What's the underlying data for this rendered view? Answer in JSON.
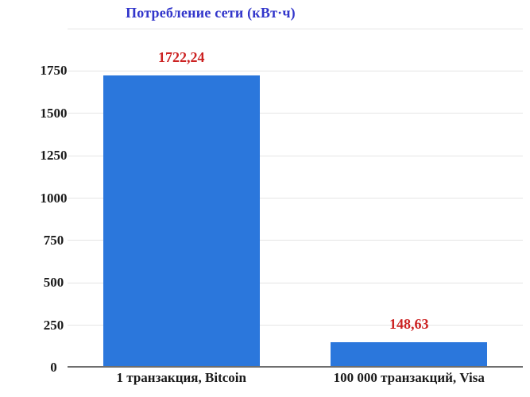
{
  "chart_data": {
    "type": "bar",
    "title": "Потребление сети (кВт·ч)",
    "categories": [
      "1 транзакция, Bitcoin",
      "100 000 транзакций, Visa"
    ],
    "values": [
      1722.24,
      148.63
    ],
    "value_labels": [
      "1722,24",
      "148,63"
    ],
    "xlabel": "",
    "ylabel": "",
    "ylim": [
      0,
      2000
    ],
    "ytick_step": 250,
    "ytick_labels": [
      "0",
      "250",
      "500",
      "750",
      "1000",
      "1250",
      "1500",
      "1750"
    ],
    "grid": "horizontal",
    "legend": "none",
    "colors": {
      "bar": "#2B77DC",
      "title": "#3236CB",
      "value_label": "#CC2222",
      "axis_text": "#1A1A1A",
      "gridline": "#E5E5E5",
      "axis_line": "#6E6E6E",
      "background": "#FFFFFF"
    }
  }
}
